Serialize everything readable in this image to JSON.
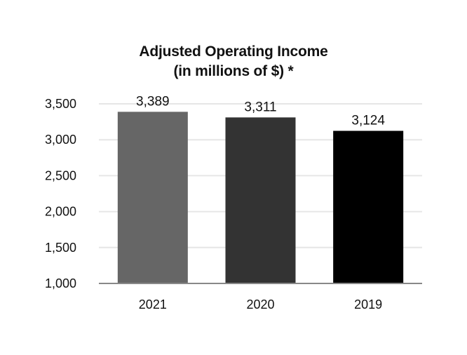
{
  "chart_data": {
    "type": "bar",
    "title": "Adjusted Operating Income",
    "subtitle": "(in millions of $) *",
    "xlabel": "",
    "ylabel": "",
    "categories": [
      "2021",
      "2020",
      "2019"
    ],
    "values": [
      3389,
      3311,
      3124
    ],
    "data_labels": [
      "3,389",
      "3,311",
      "3,124"
    ],
    "bar_colors": [
      "#666666",
      "#333333",
      "#000000"
    ],
    "ylim": [
      1000,
      3500
    ],
    "yticks": [
      1000,
      1500,
      2000,
      2500,
      3000,
      3500
    ],
    "ytick_labels": [
      "1,000",
      "1,500",
      "2,000",
      "2,500",
      "3,000",
      "3,500"
    ],
    "grid": true,
    "legend": "none"
  }
}
